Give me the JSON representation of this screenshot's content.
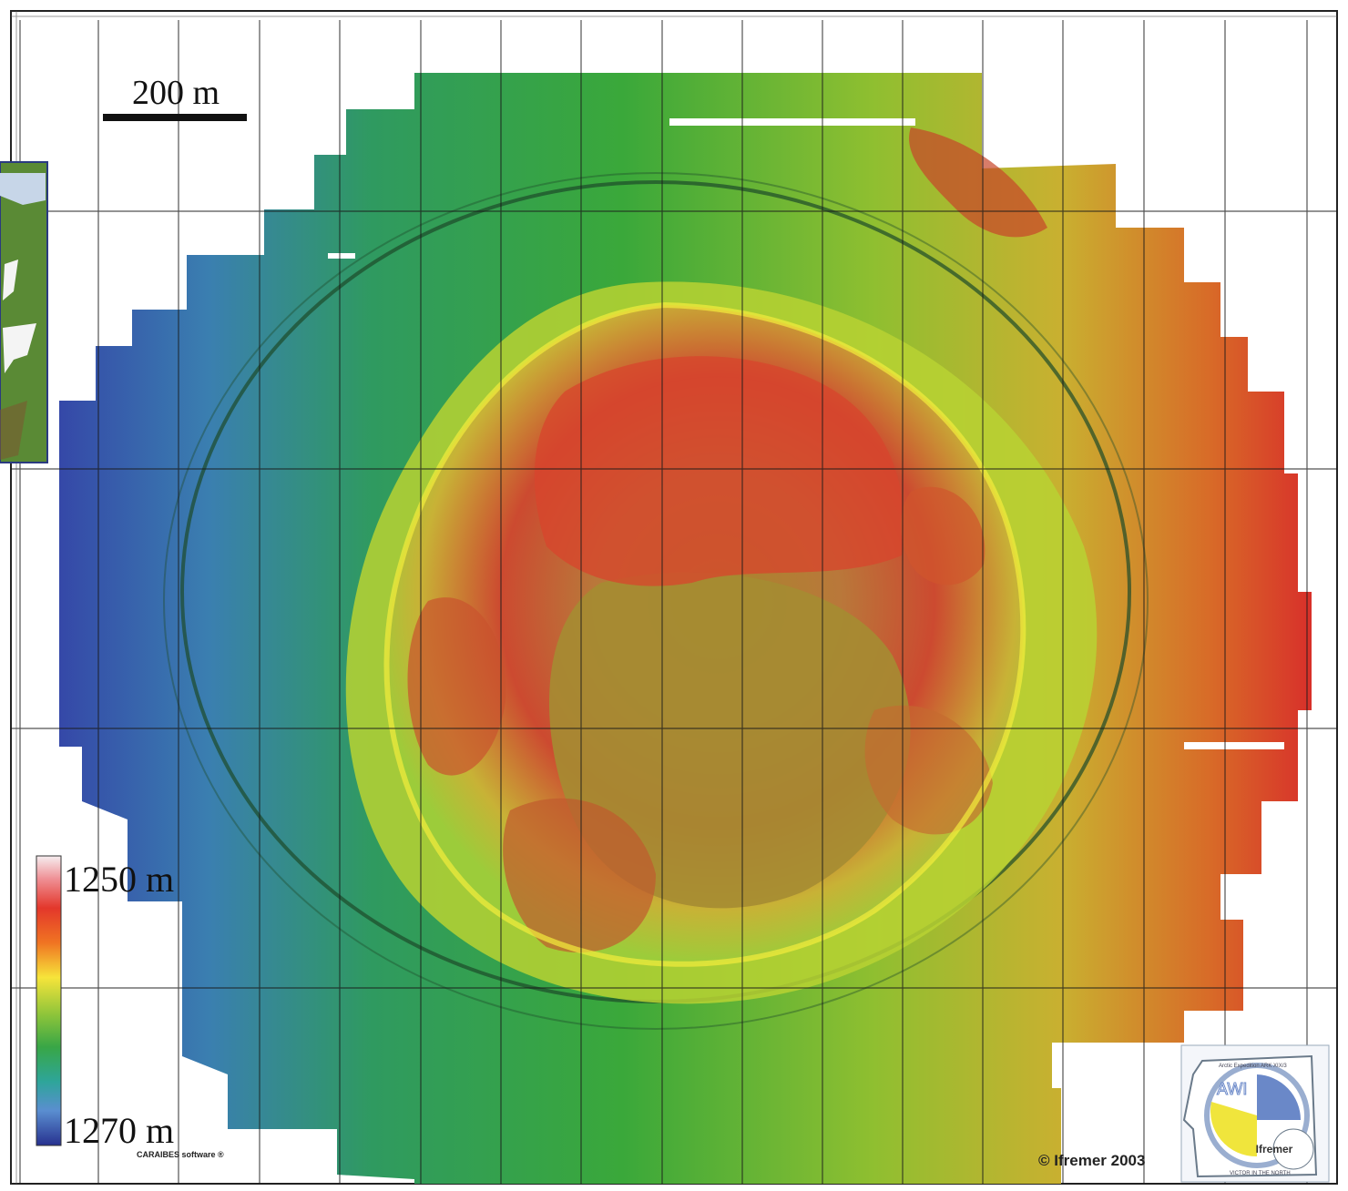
{
  "map": {
    "scale_label": "200 m",
    "legend": {
      "top_label": "1250 m",
      "bottom_label": "1270 m",
      "colors": [
        "#f4e8ec",
        "#f08a90",
        "#e4342a",
        "#f06a22",
        "#f5a531",
        "#f6e43a",
        "#b8d43a",
        "#6cbf3a",
        "#3aa84a",
        "#2aa6a0",
        "#5b8fd0",
        "#3c55b0",
        "#26308f"
      ]
    },
    "credit": "© Ifremer 2003",
    "software": "CARAIBES software ®",
    "logo": {
      "org1": "AWI",
      "org2": "Ifremer",
      "arc_top": "Arctic Expedition ARK XIX/3",
      "arc_bottom": "VICTOR IN THE NORTH"
    },
    "palette": {
      "deep": "#2d3f9e",
      "mid": "#35a040",
      "shallow": "#d83a20",
      "grid": "#1a1a1a"
    }
  }
}
